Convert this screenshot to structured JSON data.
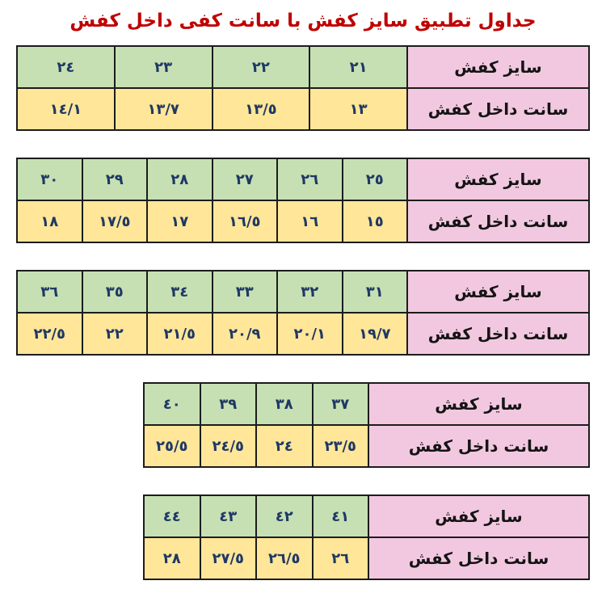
{
  "title": "جداول تطبيق سايز كفش با سانت كفى داخل كفش",
  "colors": {
    "title_color": "#c00000",
    "size_row_bg": "#c6e0b4",
    "cm_row_bg": "#ffe699",
    "label_bg": "#f2c8e0",
    "number_text": "#1f3864",
    "label_text": "#141414",
    "border": "#1c1c1c",
    "page_bg": "#ffffff"
  },
  "row_labels": {
    "size": "سايز كفش",
    "cm": "سانت داخل كفش"
  },
  "chart_data": {
    "type": "table",
    "title": "جداول تطبيق سايز كفش با سانت كفى داخل كفش",
    "row_headers": [
      "سايز كفش",
      "سانت داخل كفش"
    ],
    "tables": [
      {
        "sizes": [
          "٢١",
          "٢٢",
          "٢٣",
          "٢٤"
        ],
        "cms": [
          "١٣",
          "١٣/٥",
          "١٣/٧",
          "١٤/١"
        ]
      },
      {
        "sizes": [
          "٢٥",
          "٢٦",
          "٢٧",
          "٢٨",
          "٢٩",
          "٣٠"
        ],
        "cms": [
          "١٥",
          "١٦",
          "١٦/٥",
          "١٧",
          "١٧/٥",
          "١٨"
        ]
      },
      {
        "sizes": [
          "٣١",
          "٣٢",
          "٣٣",
          "٣٤",
          "٣٥",
          "٣٦"
        ],
        "cms": [
          "١٩/٧",
          "٢٠/١",
          "٢٠/٩",
          "٢١/٥",
          "٢٢",
          "٢٢/٥"
        ]
      },
      {
        "sizes": [
          "٣٧",
          "٣٨",
          "٣٩",
          "٤٠"
        ],
        "cms": [
          "٢٣/٥",
          "٢٤",
          "٢٤/٥",
          "٢٥/٥"
        ]
      },
      {
        "sizes": [
          "٤١",
          "٤٢",
          "٤٣",
          "٤٤"
        ],
        "cms": [
          "٢٦",
          "٢٦/٥",
          "٢٧/٥",
          "٢٨"
        ]
      }
    ]
  },
  "tables": [
    {
      "sizes": [
        "٢١",
        "٢٢",
        "٢٣",
        "٢٤"
      ],
      "cms": [
        "١٣",
        "١٣/٥",
        "١٣/٧",
        "١٤/١"
      ]
    },
    {
      "sizes": [
        "٢٥",
        "٢٦",
        "٢٧",
        "٢٨",
        "٢٩",
        "٣٠"
      ],
      "cms": [
        "١٥",
        "١٦",
        "١٦/٥",
        "١٧",
        "١٧/٥",
        "١٨"
      ]
    },
    {
      "sizes": [
        "٣١",
        "٣٢",
        "٣٣",
        "٣٤",
        "٣٥",
        "٣٦"
      ],
      "cms": [
        "١٩/٧",
        "٢٠/١",
        "٢٠/٩",
        "٢١/٥",
        "٢٢",
        "٢٢/٥"
      ]
    },
    {
      "sizes": [
        "٣٧",
        "٣٨",
        "٣٩",
        "٤٠"
      ],
      "cms": [
        "٢٣/٥",
        "٢٤",
        "٢٤/٥",
        "٢٥/٥"
      ]
    },
    {
      "sizes": [
        "٤١",
        "٤٢",
        "٤٣",
        "٤٤"
      ],
      "cms": [
        "٢٦",
        "٢٦/٥",
        "٢٧/٥",
        "٢٨"
      ]
    }
  ]
}
